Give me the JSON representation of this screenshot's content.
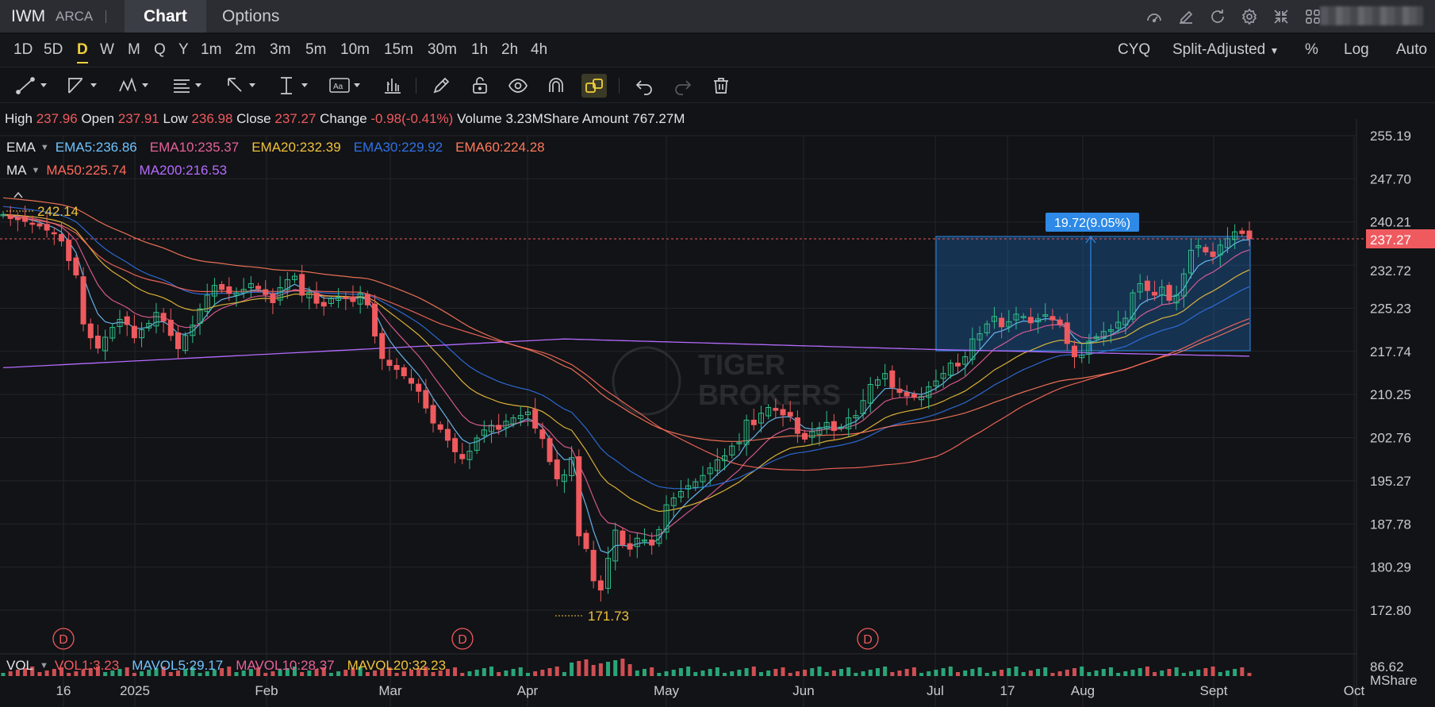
{
  "header": {
    "ticker": "IWM",
    "exchange": "ARCA",
    "tabs": [
      "Chart",
      "Options"
    ],
    "icons": [
      "speedometer-icon",
      "edit-icon",
      "refresh-icon",
      "settings-icon",
      "collapse-icon",
      "grid-layout-icon"
    ]
  },
  "periods": [
    "1D",
    "5D",
    "D",
    "W",
    "M",
    "Q",
    "Y",
    "1m",
    "2m",
    "3m",
    "5m",
    "10m",
    "15m",
    "30m",
    "1h",
    "2h",
    "4h"
  ],
  "active_period": "D",
  "right_options": {
    "cyq": "CYQ",
    "adjust": "Split-Adjusted",
    "percent": "%",
    "log": "Log",
    "auto": "Auto"
  },
  "tools": [
    "line-tool-icon",
    "trend-tool-icon",
    "pattern-tool-icon",
    "fibonacci-tool-icon",
    "arrow-tool-icon",
    "measure-tool-icon",
    "text-tool-icon",
    "indicator-tool-icon",
    "pencil-icon",
    "lock-icon",
    "eye-icon",
    "magnet-icon",
    "link-icon",
    "undo-icon",
    "redo-icon",
    "trash-icon"
  ],
  "quote": {
    "high_label": "High",
    "high": "237.96",
    "open_label": "Open",
    "open": "237.91",
    "low_label": "Low",
    "low": "236.98",
    "close_label": "Close",
    "close": "237.27",
    "change_label": "Change",
    "change": "-0.98(-0.41%)",
    "volume_label": "Volume",
    "volume": "3.23MShare",
    "amount_label": "Amount",
    "amount": "767.27M"
  },
  "ema_legend": {
    "name": "EMA",
    "items": [
      {
        "label": "EMA5:236.86",
        "color": "#6fc3ff"
      },
      {
        "label": "EMA10:235.37",
        "color": "#e5619a"
      },
      {
        "label": "EMA20:232.39",
        "color": "#f0c23b"
      },
      {
        "label": "EMA30:229.92",
        "color": "#2f72e6"
      },
      {
        "label": "EMA60:224.28",
        "color": "#ff7a5c"
      }
    ]
  },
  "ma_legend": {
    "name": "MA",
    "items": [
      {
        "label": "MA50:225.74",
        "color": "#ff6a5c"
      },
      {
        "label": "MA200:216.53",
        "color": "#b46bff"
      }
    ]
  },
  "vol_legend": {
    "name": "VOL",
    "items": [
      {
        "label": "VOL1:3.23",
        "color": "#ef5a5f"
      },
      {
        "label": "MAVOL5:29.17",
        "color": "#6fc3ff"
      },
      {
        "label": "MAVOL10:28.37",
        "color": "#e5619a"
      },
      {
        "label": "MAVOL20:32.23",
        "color": "#f0c23b"
      }
    ]
  },
  "annotations": {
    "high_marker": "242.14",
    "low_marker": "171.73",
    "measure_label": "19.72(9.05%)",
    "current_price": "237.27",
    "watermark_line1": "TIGER",
    "watermark_line2": "BROKERS",
    "dividend_marker": "D"
  },
  "chart_data": {
    "type": "candlestick",
    "y_axis_ticks": [
      "255.19",
      "247.70",
      "240.21",
      "232.72",
      "225.23",
      "217.74",
      "210.25",
      "202.76",
      "195.27",
      "187.78",
      "180.29",
      "172.80"
    ],
    "x_axis_ticks": [
      "16",
      "2025",
      "Feb",
      "Mar",
      "Apr",
      "May",
      "Jun",
      "Jul",
      "17",
      "Aug",
      "Sept",
      "Oct"
    ],
    "volume_axis_ticks": [
      "86.62",
      "MShare"
    ],
    "ylim": [
      168,
      257
    ],
    "closes": [
      241.5,
      240.8,
      240.6,
      240.3,
      239.9,
      239.5,
      238.8,
      238.2,
      236.9,
      233.5,
      231.0,
      222.5,
      220.1,
      218.3,
      220.2,
      221.9,
      223.3,
      222.4,
      220.1,
      221.5,
      222.6,
      224.5,
      223.0,
      220.5,
      218.2,
      220.5,
      222.3,
      225.1,
      227.5,
      229.2,
      228.5,
      227.8,
      227.9,
      228.5,
      229.5,
      228.6,
      227.6,
      226.2,
      228.8,
      230.2,
      230.8,
      227.5,
      228.0,
      226.1,
      225.6,
      226.9,
      227.1,
      226.9,
      226.4,
      227.8,
      225.8,
      220.4,
      216.5,
      215.3,
      214.6,
      213.5,
      212.2,
      210.8,
      207.9,
      205.3,
      204.2,
      202.3,
      200.3,
      199.1,
      200.4,
      202.7,
      204.1,
      204.9,
      204.2,
      205.6,
      206.2,
      206.6,
      207.2,
      204.4,
      202.6,
      198.6,
      195.6,
      196.3,
      199.3,
      185.7,
      183.5,
      177.9,
      176.3,
      181.8,
      186.7,
      184.2,
      183.4,
      185.3,
      185.0,
      184.1,
      186.8,
      191.1,
      192.3,
      193.4,
      194.4,
      195.1,
      196.2,
      197.5,
      198.9,
      199.6,
      201.3,
      201.9,
      205.8,
      205.0,
      207.0,
      208.0,
      207.5,
      206.7,
      206.5,
      203.5,
      202.5,
      203.8,
      204.5,
      205.4,
      204.0,
      204.6,
      206.2,
      206.6,
      209.2,
      212.0,
      212.8,
      213.9,
      211.5,
      210.6,
      210.0,
      209.8,
      209.9,
      211.6,
      212.6,
      213.9,
      215.7,
      215.2,
      216.8,
      219.9,
      220.8,
      222.5,
      223.8,
      222.0,
      222.9,
      224.2,
      223.8,
      222.7,
      223.4,
      224.1,
      223.2,
      222.4,
      219.1,
      216.8,
      217.1,
      219.5,
      220.3,
      221.2,
      221.5,
      222.8,
      223.5,
      227.9,
      229.5,
      228.3,
      227.5,
      228.9,
      226.6,
      227.5,
      231.2,
      235.3,
      236.1,
      235.0,
      234.2,
      236.2,
      237.3,
      238.5,
      238.2,
      237.3
    ],
    "ema5": [
      240.0,
      236.86
    ],
    "ema10": [
      239.0,
      235.37
    ],
    "ema20": [
      238.0,
      232.39
    ],
    "ema30": [
      236.0,
      229.92
    ],
    "ema60": [
      231.0,
      224.28
    ],
    "ma50": [
      229.5,
      225.74
    ],
    "ma200": [
      219.9,
      216.53
    ],
    "measure": {
      "from": 217.55,
      "to": 237.27,
      "diff": 19.72,
      "pct": 9.05
    },
    "dividend_dates_index": [
      13,
      81,
      154
    ]
  }
}
